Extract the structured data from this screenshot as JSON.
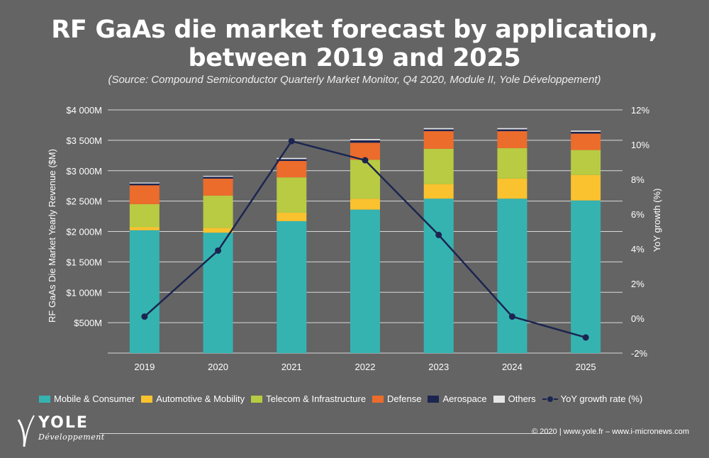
{
  "title_line1": "RF GaAs die market forecast by application,",
  "title_line2": "between 2019 and 2025",
  "subtitle": "(Source: Compound Semiconductor Quarterly Market Monitor, Q4 2020, Module II, Yole Développement)",
  "footer": "© 2020 | www.yole.fr – www.i-micronews.com",
  "logo": {
    "word": "YOLE",
    "sub": "Développement"
  },
  "chart_data": {
    "type": "bar",
    "stacked": true,
    "categories": [
      "2019",
      "2020",
      "2021",
      "2022",
      "2023",
      "2024",
      "2025"
    ],
    "ylabel": "RF GaAs Die Market Yearly Revenue ($M)",
    "y2label": "YoY growth (%)",
    "ylim": [
      0,
      4000
    ],
    "y2lim": [
      -2,
      12
    ],
    "yticks": [
      {
        "v": 500,
        "label": "$500M"
      },
      {
        "v": 1000,
        "label": "$1 000M"
      },
      {
        "v": 1500,
        "label": "$1 500M"
      },
      {
        "v": 2000,
        "label": "$2 000M"
      },
      {
        "v": 2500,
        "label": "$2 500M"
      },
      {
        "v": 3000,
        "label": "$3 000M"
      },
      {
        "v": 3500,
        "label": "$3 500M"
      },
      {
        "v": 4000,
        "label": "$4 000M"
      }
    ],
    "y2ticks": [
      {
        "v": -2,
        "label": "-2%"
      },
      {
        "v": 0,
        "label": "0%"
      },
      {
        "v": 2,
        "label": "2%"
      },
      {
        "v": 4,
        "label": "4%"
      },
      {
        "v": 6,
        "label": "6%"
      },
      {
        "v": 8,
        "label": "8%"
      },
      {
        "v": 10,
        "label": "10%"
      },
      {
        "v": 12,
        "label": "12%"
      }
    ],
    "grid": true,
    "legend_position": "bottom",
    "series": [
      {
        "name": "Mobile & Consumer",
        "color": "#35b3b1",
        "values": [
          2020,
          1980,
          2170,
          2360,
          2540,
          2540,
          2510
        ]
      },
      {
        "name": "Automotive & Mobility",
        "color": "#f9c22e",
        "values": [
          50,
          80,
          140,
          180,
          240,
          330,
          420
        ]
      },
      {
        "name": "Telecom & Infrastructure",
        "color": "#b8cb42",
        "values": [
          380,
          530,
          580,
          640,
          580,
          500,
          410
        ]
      },
      {
        "name": "Defense",
        "color": "#ec6c2c",
        "values": [
          310,
          280,
          270,
          280,
          290,
          280,
          270
        ]
      },
      {
        "name": "Aerospace",
        "color": "#1b2550",
        "values": [
          30,
          30,
          30,
          40,
          30,
          30,
          30
        ]
      },
      {
        "name": "Others",
        "color": "#e6e6e6",
        "values": [
          15,
          15,
          20,
          20,
          20,
          20,
          20
        ]
      }
    ],
    "line_series": {
      "name": "YoY growth rate (%)",
      "color": "#1b2550",
      "values": [
        0.1,
        3.9,
        10.2,
        9.1,
        4.8,
        0.1,
        -1.1
      ]
    }
  }
}
